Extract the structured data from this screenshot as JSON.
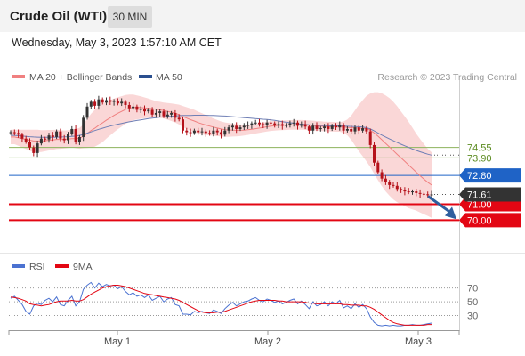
{
  "header": {
    "title": "Crude Oil (WTI)",
    "interval": "30 MIN",
    "datetime": "Wednesday, May 3, 2023 1:57:10 AM CET"
  },
  "legend": {
    "ma20_label": "MA 20 + Bollinger Bands",
    "ma50_label": "MA 50",
    "copyright": "Research © 2023 Trading Central"
  },
  "colors": {
    "ma20": "#f08080",
    "bollinger_fill": "#f9d0d0",
    "ma50": "#6f7fb5",
    "candle_up": "#333333",
    "candle_down": "#b5121b",
    "level_green": "#8db35c",
    "level_green_text": "#5a8a1e",
    "level_blue": "#1f63c6",
    "level_red": "#e30613",
    "last_price": "#333333",
    "arrow": "#2f5f9e",
    "rsi": "#4b72d1",
    "rsi_ma": "#e30613"
  },
  "chart_data": [
    {
      "type": "candlestick",
      "x_tick_labels": [
        "May 1",
        "May 2",
        "May 3"
      ],
      "y_range": [
        68.3,
        78.2
      ],
      "last_price": 71.61,
      "levels": [
        {
          "value": 74.55,
          "label": "74.55",
          "kind": "resistance"
        },
        {
          "value": 73.9,
          "label": "73.90",
          "kind": "resistance"
        },
        {
          "value": 72.8,
          "label": "72.80",
          "kind": "pivot"
        },
        {
          "value": 71.0,
          "label": "71.00",
          "kind": "support"
        },
        {
          "value": 70.0,
          "label": "70.00",
          "kind": "support"
        }
      ],
      "closes": [
        75.5,
        75.45,
        75.35,
        75.1,
        74.9,
        74.55,
        74.2,
        74.8,
        75.1,
        75.05,
        75.3,
        75.2,
        75.55,
        75.1,
        75.0,
        75.4,
        75.7,
        74.9,
        75.2,
        76.4,
        77.1,
        77.4,
        77.15,
        77.55,
        77.35,
        77.5,
        77.4,
        77.45,
        77.3,
        77.4,
        77.2,
        77.0,
        77.1,
        76.9,
        76.95,
        76.8,
        76.9,
        76.6,
        76.7,
        76.8,
        76.5,
        76.6,
        76.7,
        76.4,
        76.3,
        75.6,
        75.5,
        75.45,
        75.6,
        75.5,
        75.55,
        75.45,
        75.4,
        75.6,
        75.5,
        75.35,
        75.6,
        75.8,
        75.9,
        75.7,
        75.8,
        75.9,
        75.95,
        76.05,
        76.1,
        76.0,
        75.95,
        76.1,
        76.05,
        75.95,
        76.0,
        75.9,
        75.95,
        76.05,
        76.1,
        75.9,
        76.0,
        75.85,
        75.6,
        75.9,
        75.7,
        75.75,
        75.85,
        75.7,
        75.9,
        75.8,
        75.95,
        75.6,
        75.7,
        75.55,
        75.8,
        75.6,
        75.75,
        75.55,
        74.7,
        73.6,
        73.0,
        72.6,
        72.4,
        72.2,
        72.15,
        71.95,
        71.9,
        71.8,
        71.75,
        71.8,
        71.7,
        71.65,
        71.62,
        71.6,
        71.61
      ],
      "ma20": [
        75.2,
        75.2,
        75.15,
        75.1,
        75.05,
        75.0,
        74.95,
        74.95,
        74.95,
        74.97,
        75.0,
        75.02,
        75.05,
        75.05,
        75.05,
        75.07,
        75.1,
        75.1,
        75.12,
        75.25,
        75.42,
        75.6,
        75.75,
        75.93,
        76.08,
        76.25,
        76.4,
        76.55,
        76.68,
        76.8,
        76.92,
        77.0,
        77.05,
        77.05,
        77.04,
        77.02,
        77.0,
        76.97,
        76.93,
        76.9,
        76.85,
        76.8,
        76.75,
        76.68,
        76.6,
        76.48,
        76.38,
        76.28,
        76.2,
        76.1,
        76.02,
        75.95,
        75.88,
        75.82,
        75.76,
        75.7,
        75.66,
        75.64,
        75.63,
        75.62,
        75.62,
        75.63,
        75.65,
        75.68,
        75.72,
        75.76,
        75.8,
        75.84,
        75.88,
        75.9,
        75.92,
        75.93,
        75.94,
        75.95,
        75.96,
        75.96,
        75.96,
        75.95,
        75.93,
        75.92,
        75.9,
        75.88,
        75.86,
        75.85,
        75.84,
        75.83,
        75.83,
        75.82,
        75.8,
        75.78,
        75.77,
        75.76,
        75.75,
        75.72,
        75.62,
        75.45,
        75.25,
        75.03,
        74.8,
        74.58,
        74.35,
        74.12,
        73.9,
        73.68,
        73.45,
        73.23,
        73.0,
        72.78,
        72.57,
        72.37,
        72.2
      ],
      "ma50": [
        75.3,
        75.3,
        75.28,
        75.26,
        75.24,
        75.22,
        75.2,
        75.19,
        75.18,
        75.18,
        75.18,
        75.18,
        75.19,
        75.2,
        75.21,
        75.22,
        75.24,
        75.26,
        75.3,
        75.36,
        75.44,
        75.52,
        75.6,
        75.68,
        75.75,
        75.82,
        75.88,
        75.94,
        76.0,
        76.05,
        76.1,
        76.15,
        76.19,
        76.23,
        76.27,
        76.31,
        76.35,
        76.38,
        76.41,
        76.44,
        76.46,
        76.48,
        76.5,
        76.52,
        76.53,
        76.54,
        76.55,
        76.55,
        76.56,
        76.56,
        76.56,
        76.56,
        76.55,
        76.54,
        76.53,
        76.52,
        76.51,
        76.49,
        76.47,
        76.45,
        76.43,
        76.41,
        76.39,
        76.37,
        76.35,
        76.33,
        76.31,
        76.29,
        76.27,
        76.24,
        76.2,
        76.16,
        76.12,
        76.09,
        76.06,
        76.03,
        76.0,
        75.98,
        75.96,
        75.94,
        75.93,
        75.92,
        75.91,
        75.9,
        75.9,
        75.89,
        75.89,
        75.88,
        75.87,
        75.86,
        75.85,
        75.84,
        75.82,
        75.78,
        75.7,
        75.58,
        75.45,
        75.32,
        75.2,
        75.08,
        74.97,
        74.86,
        74.75,
        74.65,
        74.55,
        74.45,
        74.36,
        74.28,
        74.2,
        74.13,
        74.07
      ],
      "band_halfwidth": [
        0.45,
        0.45,
        0.5,
        0.55,
        0.6,
        0.65,
        0.7,
        0.7,
        0.68,
        0.66,
        0.64,
        0.62,
        0.6,
        0.58,
        0.56,
        0.55,
        0.55,
        0.6,
        0.65,
        0.75,
        0.9,
        1.05,
        1.15,
        1.2,
        1.2,
        1.15,
        1.1,
        1.05,
        1.0,
        0.95,
        0.9,
        0.85,
        0.8,
        0.75,
        0.7,
        0.65,
        0.6,
        0.55,
        0.5,
        0.5,
        0.5,
        0.52,
        0.55,
        0.58,
        0.62,
        0.66,
        0.68,
        0.7,
        0.7,
        0.68,
        0.66,
        0.62,
        0.58,
        0.54,
        0.5,
        0.47,
        0.45,
        0.43,
        0.4,
        0.38,
        0.36,
        0.34,
        0.32,
        0.3,
        0.3,
        0.3,
        0.3,
        0.3,
        0.3,
        0.3,
        0.3,
        0.3,
        0.3,
        0.3,
        0.3,
        0.3,
        0.3,
        0.3,
        0.3,
        0.3,
        0.3,
        0.3,
        0.3,
        0.3,
        0.3,
        0.3,
        0.3,
        0.35,
        0.5,
        0.75,
        1.1,
        1.45,
        1.75,
        2.05,
        2.3,
        2.55,
        2.75,
        2.9,
        3.0,
        3.05,
        3.05,
        3.0,
        2.9,
        2.8,
        2.7,
        2.55,
        2.4,
        2.3,
        2.2,
        2.1,
        2.05
      ]
    },
    {
      "type": "line",
      "name": "RSI",
      "ma_name": "9MA",
      "y_ticks": [
        70,
        50,
        30
      ],
      "y_range": [
        10,
        85
      ],
      "rsi": [
        55,
        58,
        52,
        46,
        36,
        32,
        44,
        48,
        46,
        52,
        55,
        50,
        57,
        46,
        44,
        52,
        58,
        44,
        50,
        68,
        74,
        78,
        70,
        77,
        72,
        75,
        73,
        74,
        69,
        72,
        65,
        60,
        63,
        58,
        60,
        56,
        60,
        52,
        55,
        58,
        50,
        54,
        56,
        46,
        44,
        32,
        32,
        31,
        36,
        34,
        36,
        34,
        33,
        38,
        36,
        33,
        40,
        45,
        49,
        44,
        47,
        50,
        51,
        54,
        56,
        52,
        50,
        54,
        52,
        49,
        51,
        47,
        49,
        52,
        54,
        47,
        51,
        46,
        40,
        50,
        44,
        46,
        50,
        44,
        50,
        47,
        52,
        41,
        44,
        40,
        47,
        42,
        46,
        40,
        28,
        20,
        16,
        15,
        16,
        15,
        16,
        15,
        15,
        16,
        16,
        17,
        16,
        16,
        17,
        18,
        19
      ],
      "ma": [
        57,
        56,
        55,
        53,
        51,
        47,
        46,
        45,
        44,
        45,
        46,
        48,
        50,
        51,
        51,
        51,
        52,
        51,
        51,
        53,
        57,
        61,
        64,
        67,
        70,
        72,
        73,
        74,
        74,
        73,
        72,
        70,
        68,
        66,
        64,
        62,
        61,
        60,
        59,
        58,
        57,
        56,
        55,
        54,
        52,
        49,
        46,
        43,
        40,
        37,
        35,
        34,
        34,
        34,
        35,
        35,
        36,
        38,
        40,
        42,
        44,
        46,
        48,
        50,
        51,
        52,
        52,
        52,
        52,
        52,
        51,
        51,
        50,
        50,
        50,
        50,
        50,
        49,
        48,
        48,
        47,
        47,
        47,
        47,
        47,
        47,
        47,
        46,
        46,
        45,
        45,
        45,
        44,
        44,
        42,
        39,
        35,
        31,
        27,
        23,
        20,
        18,
        17,
        16,
        16,
        16,
        16,
        16,
        16,
        17,
        17
      ]
    }
  ]
}
